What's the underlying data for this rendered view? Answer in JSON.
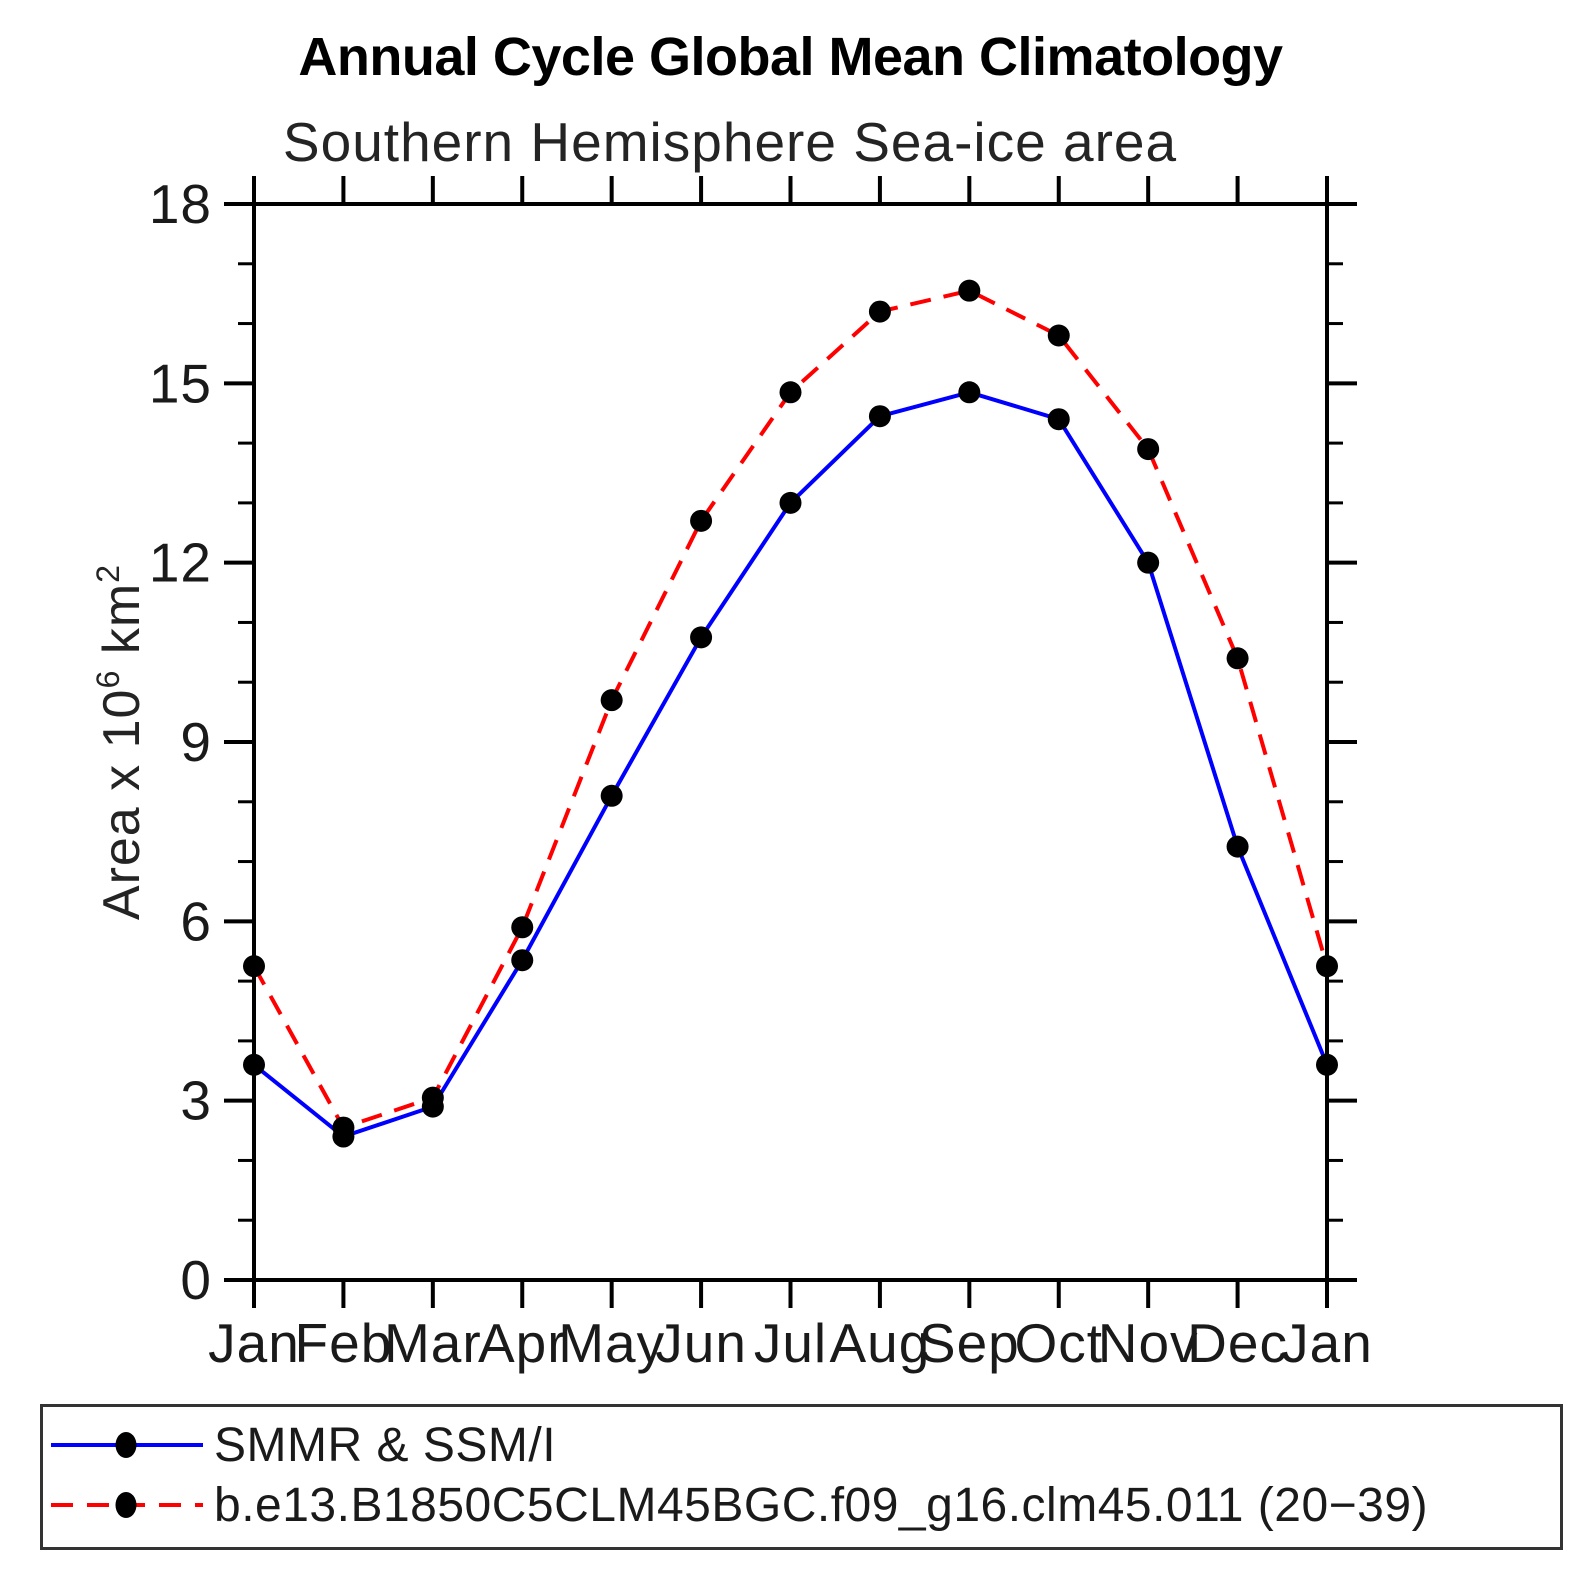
{
  "title": "Annual Cycle Global Mean Climatology",
  "subtitle": "Southern Hemisphere Sea-ice area",
  "y_axis": {
    "label_prefix": "Area x 10",
    "label_exp": "6",
    "label_unit": " km",
    "label_unit_exp": "2",
    "major_ticks": [
      0,
      3,
      6,
      9,
      12,
      15,
      18
    ],
    "minor_step": 1
  },
  "chart_data": {
    "type": "line",
    "title": "Annual Cycle Global Mean Climatology",
    "subtitle": "Southern Hemisphere Sea-ice area",
    "ylabel": "Area x 10^6 km^2",
    "xlabel": "",
    "ylim": [
      0,
      18
    ],
    "grid": false,
    "legend_position": "bottom-box",
    "categories": [
      "Jan",
      "Feb",
      "Mar",
      "Apr",
      "May",
      "Jun",
      "Jul",
      "Aug",
      "Sep",
      "Oct",
      "Nov",
      "Dec",
      "Jan"
    ],
    "marker_color": "#000000",
    "axis_color": "#000000",
    "series": [
      {
        "name": "SMMR & SSM/I",
        "color": "#0000ff",
        "style": "solid",
        "marker": "filled-circle",
        "values": [
          3.6,
          2.4,
          2.9,
          5.35,
          8.1,
          10.75,
          13.0,
          14.45,
          14.85,
          14.4,
          12.0,
          7.25,
          3.6
        ]
      },
      {
        "name": "b.e13.B1850C5CLM45BGC.f09_g16.clm45.011 (20−39)",
        "color": "#ff0000",
        "style": "dashed",
        "marker": "filled-circle",
        "values": [
          5.25,
          2.55,
          3.05,
          5.9,
          9.7,
          12.7,
          14.85,
          16.2,
          16.55,
          15.8,
          13.9,
          10.4,
          5.25
        ]
      }
    ]
  }
}
